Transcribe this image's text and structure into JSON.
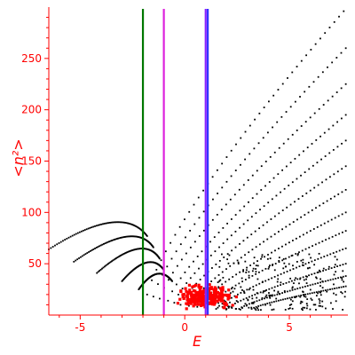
{
  "chart_data": {
    "type": "scatter",
    "title": "",
    "xlabel": "E",
    "ylabel": "<n²>",
    "xlim": [
      -6.5,
      7.8
    ],
    "ylim": [
      0,
      300
    ],
    "x_ticks": [
      -5,
      0,
      5
    ],
    "x_tick_labels": [
      "-5",
      "0",
      "5"
    ],
    "y_ticks": [
      50,
      100,
      150,
      200,
      250
    ],
    "y_tick_labels": [
      "50",
      "100",
      "150",
      "200",
      "250"
    ],
    "grid": false,
    "legend": "none",
    "vertical_lines": [
      {
        "x": -2.0,
        "color": "#007700"
      },
      {
        "x": -1.0,
        "color": "#dd22dd"
      },
      {
        "x": 1.0,
        "color": "#8822ff"
      },
      {
        "x": 1.1,
        "color": "#3333ff"
      }
    ],
    "black_branches": [
      {
        "x0": -6.5,
        "y0": 64,
        "xp": -3.0,
        "yp": 90,
        "x1": -1.8,
        "y1": 77
      },
      {
        "x0": -5.3,
        "y0": 52,
        "xp": -2.4,
        "yp": 76,
        "x1": -1.5,
        "y1": 66
      },
      {
        "x0": -4.2,
        "y0": 41,
        "xp": -2.0,
        "yp": 64,
        "x1": -1.2,
        "y1": 55
      },
      {
        "x0": -3.0,
        "y0": 33,
        "xp": -1.7,
        "yp": 51,
        "x1": -1.0,
        "y1": 44
      },
      {
        "x0": -2.2,
        "y0": 25,
        "xp": -1.3,
        "yp": 40,
        "x1": -0.6,
        "y1": 33
      }
    ],
    "black_curves": [
      {
        "x_start": -1.8,
        "y_start": 20,
        "x_end": 7.6,
        "y_end": 296
      },
      {
        "x_start": -1.5,
        "y_start": 18,
        "x_end": 7.7,
        "y_end": 260
      },
      {
        "x_start": -1.2,
        "y_start": 16,
        "x_end": 7.7,
        "y_end": 225
      },
      {
        "x_start": -0.8,
        "y_start": 14,
        "x_end": 7.7,
        "y_end": 195
      },
      {
        "x_start": -0.5,
        "y_start": 12,
        "x_end": 7.7,
        "y_end": 170
      },
      {
        "x_start": -0.2,
        "y_start": 10,
        "x_end": 7.7,
        "y_end": 145
      },
      {
        "x_start": 0.2,
        "y_start": 9,
        "x_end": 7.7,
        "y_end": 122
      },
      {
        "x_start": 0.6,
        "y_start": 8,
        "x_end": 7.7,
        "y_end": 100
      },
      {
        "x_start": 1.0,
        "y_start": 7,
        "x_end": 7.7,
        "y_end": 82
      },
      {
        "x_start": 1.5,
        "y_start": 6,
        "x_end": 7.7,
        "y_end": 65
      },
      {
        "x_start": 2.0,
        "y_start": 6,
        "x_end": 7.7,
        "y_end": 50
      },
      {
        "x_start": 2.6,
        "y_start": 6,
        "x_end": 7.7,
        "y_end": 38
      },
      {
        "x_start": 3.2,
        "y_start": 6,
        "x_end": 7.7,
        "y_end": 28
      }
    ],
    "red_cluster": {
      "x_center": 1.0,
      "y_center": 18,
      "x_spread": 1.2,
      "y_spread": 9,
      "count": 260
    },
    "colors": {
      "axis": "#ff0000",
      "points": "#000000",
      "cluster": "#ff0000"
    }
  }
}
